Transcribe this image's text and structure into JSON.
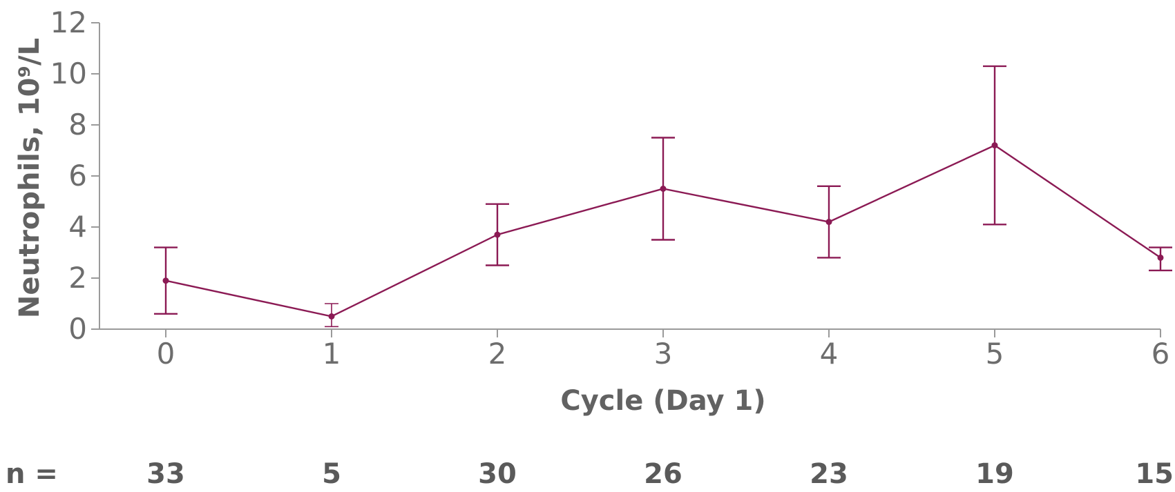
{
  "chart_data": {
    "type": "line",
    "title": "",
    "xlabel": "Cycle (Day 1)",
    "ylabel": "Neutrophils, 10⁹/L",
    "x": [
      0,
      1,
      2,
      3,
      4,
      5,
      6
    ],
    "x_tick_labels": [
      "0",
      "1",
      "2",
      "3",
      "4",
      "5",
      "6"
    ],
    "xlim": [
      -0.4,
      6
    ],
    "ylim": [
      0,
      12
    ],
    "y_ticks": [
      0,
      2,
      4,
      6,
      8,
      10,
      12
    ],
    "y_tick_labels": [
      "0",
      "2",
      "4",
      "6",
      "8",
      "10",
      "12"
    ],
    "grid": false,
    "series": [
      {
        "color": "#8b1a54",
        "values": [
          1.9,
          0.5,
          3.7,
          5.5,
          4.2,
          7.2,
          2.8
        ],
        "error_low": [
          0.6,
          0.1,
          2.5,
          3.5,
          2.8,
          4.1,
          2.3
        ],
        "error_high": [
          3.2,
          1.0,
          4.9,
          7.5,
          5.6,
          10.3,
          3.2
        ]
      }
    ],
    "n_label": "n =",
    "n_values": [
      "33",
      "5",
      "30",
      "26",
      "23",
      "19",
      "15"
    ]
  }
}
